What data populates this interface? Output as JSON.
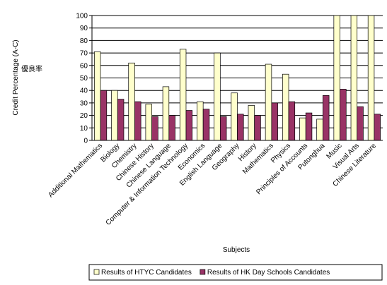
{
  "chart_data": {
    "type": "bar",
    "y_label": [
      "Credit Percentage (A-C)",
      "優良率"
    ],
    "x_label": "Subjects",
    "categories": [
      "Additional Mathematics",
      "Biology",
      "Chemistry",
      "Chinese History",
      "Chinese Language",
      "Computer & Information Technology",
      "Economics",
      "English Language",
      "Geography",
      "History",
      "Mathematics",
      "Physics",
      "Principles of Accounts",
      "Putonghua",
      "Music",
      "Visual Arts",
      "Chinese Literature"
    ],
    "series": [
      {
        "name": "Results of HTYC Candidates",
        "color": "#ffffcc",
        "values": [
          71,
          40,
          62,
          29,
          43,
          73,
          31,
          70,
          38,
          28,
          61,
          53,
          18,
          17,
          100,
          100,
          100
        ]
      },
      {
        "name": "Results of HK Day Schools Candidates",
        "color": "#993366",
        "values": [
          40,
          33,
          31,
          19,
          20,
          24,
          25,
          19,
          21,
          20,
          30,
          31,
          22,
          36,
          41,
          27,
          21
        ]
      }
    ],
    "ylim": [
      0,
      100
    ],
    "yticks": [
      0,
      10,
      20,
      30,
      40,
      50,
      60,
      70,
      80,
      90,
      100
    ],
    "grid": true,
    "legend": "bottom"
  }
}
